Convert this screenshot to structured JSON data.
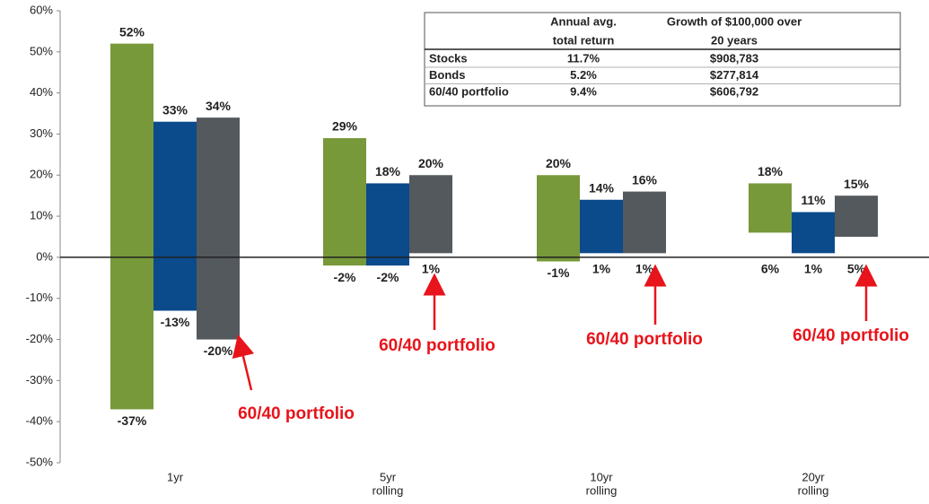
{
  "chart_data": {
    "type": "floating_bar",
    "categories": [
      [
        "1yr"
      ],
      [
        "5yr",
        "rolling"
      ],
      [
        "10yr",
        "rolling"
      ],
      [
        "20yr",
        "rolling"
      ]
    ],
    "series": [
      {
        "name": "Stocks",
        "color": "#77993a",
        "highs": [
          52,
          29,
          20,
          18
        ],
        "high_labels": [
          "52%",
          "29%",
          "20%",
          "18%"
        ],
        "lows": [
          -37,
          -2,
          -1,
          6
        ],
        "low_labels": [
          "-37%",
          "-2%",
          "-1%",
          "6%"
        ]
      },
      {
        "name": "Bonds",
        "color": "#0b4a8b",
        "highs": [
          33,
          18,
          14,
          11
        ],
        "high_labels": [
          "33%",
          "18%",
          "14%",
          "11%"
        ],
        "lows": [
          -13,
          -2,
          1,
          1
        ],
        "low_labels": [
          "-13%",
          "-2%",
          "1%",
          "1%"
        ]
      },
      {
        "name": "60/40 portfolio",
        "color": "#54595d",
        "highs": [
          34,
          20,
          16,
          15
        ],
        "high_labels": [
          "34%",
          "20%",
          "16%",
          "15%"
        ],
        "lows": [
          -20,
          1,
          1,
          5
        ],
        "low_labels": [
          "-20%",
          "1%",
          "1%",
          "5%"
        ]
      }
    ],
    "ylim": [
      -50,
      60
    ],
    "yticks": [
      {
        "value": -50,
        "label": "-50%"
      },
      {
        "value": -40,
        "label": "-40%"
      },
      {
        "value": -30,
        "label": "-30%"
      },
      {
        "value": -20,
        "label": "-20%"
      },
      {
        "value": -10,
        "label": "-10%"
      },
      {
        "value": 0,
        "label": "0%"
      },
      {
        "value": 10,
        "label": "10%"
      },
      {
        "value": 20,
        "label": "20%"
      },
      {
        "value": 30,
        "label": "30%"
      },
      {
        "value": 40,
        "label": "40%"
      },
      {
        "value": 50,
        "label": "50%"
      },
      {
        "value": 60,
        "label": "60%"
      }
    ],
    "table": {
      "headers": [
        [
          "Annual avg.",
          "total return"
        ],
        [
          "Growth of $100,000 over",
          "20 years"
        ]
      ],
      "rows": [
        [
          "Stocks",
          "11.7%",
          "$908,783"
        ],
        [
          "Bonds",
          "5.2%",
          "$277,814"
        ],
        [
          "60/40 portfolio",
          "9.4%",
          "$606,792"
        ]
      ]
    },
    "annotations": [
      "60/40 portfolio",
      "60/40 portfolio",
      "60/40 portfolio",
      "60/40 portfolio"
    ]
  }
}
